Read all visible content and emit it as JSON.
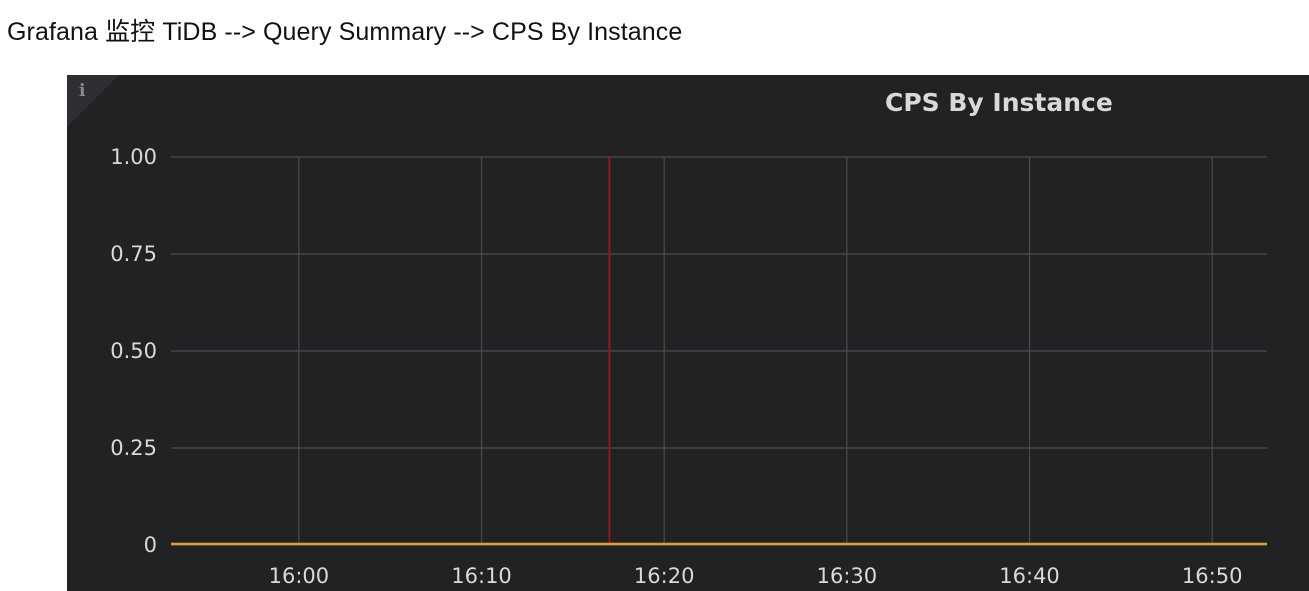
{
  "caption": "Grafana 监控 TiDB --> Query Summary --> CPS By Instance",
  "panel": {
    "info_icon": "info-icon",
    "info_glyph": "i"
  },
  "chart_data": {
    "type": "line",
    "title": "CPS By Instance",
    "xlabel": "",
    "ylabel": "",
    "x_ticks": [
      "16:00",
      "16:10",
      "16:20",
      "16:30",
      "16:40",
      "16:50"
    ],
    "y_ticks": [
      "0",
      "0.25",
      "0.50",
      "0.75",
      "1.00"
    ],
    "ylim": [
      0,
      1
    ],
    "x_range_minutes": [
      "15:53",
      "16:53"
    ],
    "grid": true,
    "legend": "none",
    "series": [
      {
        "color": "#e0a12a",
        "x": [
          "15:53",
          "16:53"
        ],
        "y": [
          0,
          0
        ]
      }
    ],
    "annotations": [
      {
        "type": "vertical-line",
        "x": "16:17",
        "color": "#8b1a1a"
      }
    ],
    "colors": {
      "background": "#222224",
      "grid": "#4b4b50",
      "text": "#d8d9da"
    }
  }
}
